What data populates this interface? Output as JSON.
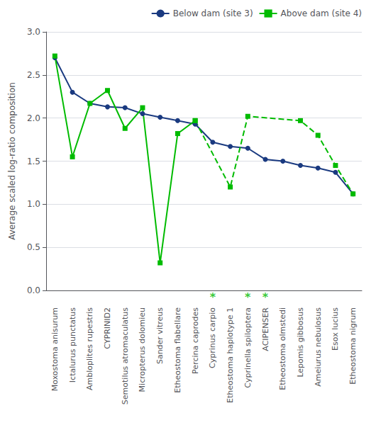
{
  "chart_data": {
    "type": "line",
    "ylabel": "Average scaled log-ratio composition",
    "categories": [
      "Moxostoma anisurum",
      "Ictalurus punctatus",
      "Ambloplites rupestris",
      "CYPRINID2",
      "Semotilus atromaculatus",
      "Micropterus dolomieu",
      "Sander vitreus",
      "Etheostoma flabellare",
      "Percina caprodes",
      "Cyprinus carpio",
      "Etheostoma haplotype 1",
      "Cyprinella spiloptera",
      "ACIPENSER",
      "Etheostoma olmstedi",
      "Lepomis gibbosus",
      "Ameiurus nebulosus",
      "Esox lucius",
      "Etheostoma nigrum"
    ],
    "series": [
      {
        "name": "Below dam (site 3)",
        "color": "#1a3a80",
        "marker": "circle",
        "line_style": "solid",
        "values": [
          2.7,
          2.3,
          2.17,
          2.13,
          2.12,
          2.05,
          2.01,
          1.97,
          1.93,
          1.72,
          1.67,
          1.65,
          1.52,
          1.5,
          1.45,
          1.42,
          1.37,
          1.12
        ]
      },
      {
        "name": "Above dam (site 4)",
        "color": "#00bb00",
        "marker": "square",
        "line_style": "solid",
        "values": [
          2.72,
          1.55,
          2.17,
          2.32,
          1.88,
          2.12,
          0.32,
          1.82,
          1.97,
          null,
          null,
          null,
          null,
          null,
          null,
          null,
          null,
          null
        ]
      },
      {
        "name": "Above dam (site 4)",
        "color": "#00bb00",
        "marker": "square",
        "line_style": "dashed",
        "values": [
          null,
          null,
          null,
          null,
          null,
          null,
          null,
          null,
          1.97,
          null,
          1.2,
          2.02,
          null,
          null,
          1.97,
          1.8,
          1.45,
          1.12
        ]
      }
    ],
    "annotations": [
      {
        "text": "*",
        "x": "Cyprinus carpio",
        "color": "#00bb00"
      },
      {
        "text": "*",
        "x": "Cyprinella spiloptera",
        "color": "#00bb00"
      },
      {
        "text": "*",
        "x": "ACIPENSER",
        "color": "#00bb00"
      }
    ],
    "ylim": [
      0,
      3.0
    ],
    "yticks": [
      {
        "value": 0,
        "label": "0.0"
      },
      {
        "value": 0.5,
        "label": "0.5"
      },
      {
        "value": 1.0,
        "label": "1.0"
      },
      {
        "value": 1.5,
        "label": "1.5"
      },
      {
        "value": 2.0,
        "label": "2.0"
      },
      {
        "value": 2.5,
        "label": "2.5"
      },
      {
        "value": 3.0,
        "label": "3.0"
      }
    ],
    "grid": true,
    "legend": "upper right"
  }
}
